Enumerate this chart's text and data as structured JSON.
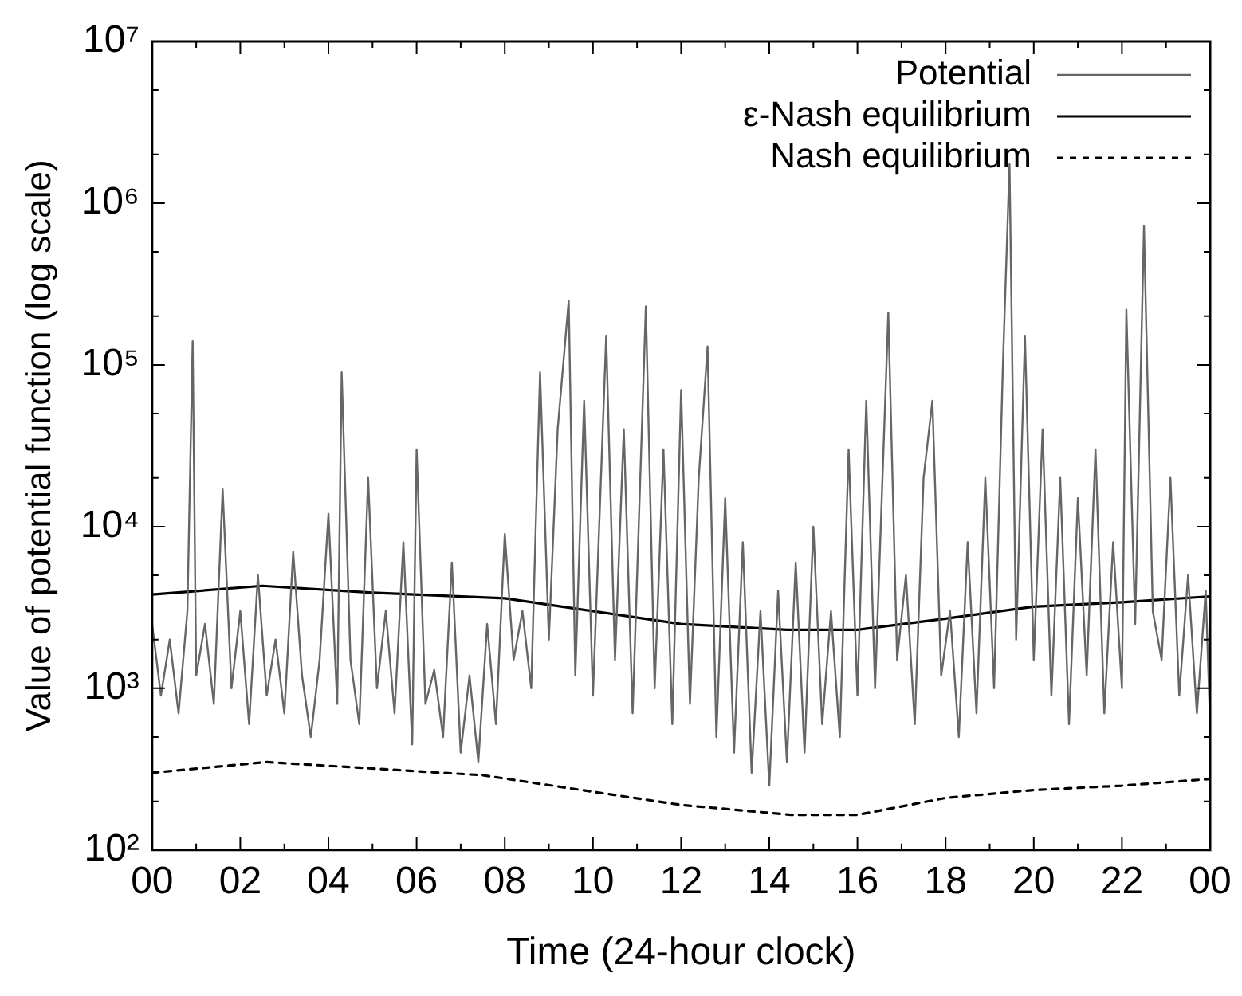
{
  "chart_data": {
    "type": "line",
    "xlabel": "Time (24-hour clock)",
    "ylabel": "Value of potential function (log scale)",
    "log": "y",
    "grid": false,
    "legend": "top right",
    "marker": "none",
    "xlim": [
      0,
      24
    ],
    "xticks": [
      {
        "value": 0,
        "label": "00"
      },
      {
        "value": 1,
        "label": null
      },
      {
        "value": 2,
        "label": "02"
      },
      {
        "value": 3,
        "label": null
      },
      {
        "value": 4,
        "label": "04"
      },
      {
        "value": 5,
        "label": null
      },
      {
        "value": 6,
        "label": "06"
      },
      {
        "value": 7,
        "label": null
      },
      {
        "value": 8,
        "label": "08"
      },
      {
        "value": 9,
        "label": null
      },
      {
        "value": 10,
        "label": "10"
      },
      {
        "value": 11,
        "label": null
      },
      {
        "value": 12,
        "label": "12"
      },
      {
        "value": 13,
        "label": null
      },
      {
        "value": 14,
        "label": "14"
      },
      {
        "value": 15,
        "label": null
      },
      {
        "value": 16,
        "label": "16"
      },
      {
        "value": 17,
        "label": null
      },
      {
        "value": 18,
        "label": "18"
      },
      {
        "value": 19,
        "label": null
      },
      {
        "value": 20,
        "label": "20"
      },
      {
        "value": 21,
        "label": null
      },
      {
        "value": 22,
        "label": "22"
      },
      {
        "value": 23,
        "label": null
      },
      {
        "value": 24,
        "label": "00"
      }
    ],
    "ylim": [
      100,
      10000000
    ],
    "yticks": [
      {
        "value": 100,
        "label": "10²"
      },
      {
        "value": 200,
        "label": null
      },
      {
        "value": 500,
        "label": null
      },
      {
        "value": 1000,
        "label": "10³"
      },
      {
        "value": 2000,
        "label": null
      },
      {
        "value": 5000,
        "label": null
      },
      {
        "value": 10000,
        "label": "10⁴"
      },
      {
        "value": 20000,
        "label": null
      },
      {
        "value": 50000,
        "label": null
      },
      {
        "value": 100000,
        "label": "10⁵"
      },
      {
        "value": 200000,
        "label": null
      },
      {
        "value": 500000,
        "label": null
      },
      {
        "value": 1000000,
        "label": "10⁶"
      },
      {
        "value": 2000000,
        "label": null
      },
      {
        "value": 5000000,
        "label": null
      },
      {
        "value": 10000000,
        "label": "10⁷"
      }
    ],
    "series": [
      {
        "name": "Potential",
        "color": "#666666",
        "line_style": "solid",
        "x": [
          0,
          0.2,
          0.4,
          0.6,
          0.8,
          0.92,
          1.0,
          1.2,
          1.4,
          1.6,
          1.8,
          2.0,
          2.2,
          2.4,
          2.6,
          2.8,
          3.0,
          3.2,
          3.4,
          3.6,
          3.8,
          4.0,
          4.2,
          4.3,
          4.5,
          4.7,
          4.9,
          5.1,
          5.3,
          5.5,
          5.7,
          5.9,
          6.0,
          6.2,
          6.4,
          6.6,
          6.8,
          7.0,
          7.2,
          7.4,
          7.6,
          7.8,
          8.0,
          8.2,
          8.4,
          8.6,
          8.8,
          9.0,
          9.2,
          9.45,
          9.6,
          9.8,
          10.0,
          10.3,
          10.5,
          10.7,
          10.9,
          11.2,
          11.4,
          11.6,
          11.8,
          12.0,
          12.2,
          12.4,
          12.6,
          12.8,
          13.0,
          13.2,
          13.4,
          13.6,
          13.8,
          14.0,
          14.2,
          14.4,
          14.6,
          14.8,
          15.0,
          15.2,
          15.4,
          15.6,
          15.8,
          16.0,
          16.2,
          16.4,
          16.7,
          16.9,
          17.1,
          17.3,
          17.5,
          17.7,
          17.9,
          18.1,
          18.3,
          18.5,
          18.7,
          18.9,
          19.1,
          19.3,
          19.45,
          19.6,
          19.8,
          20.0,
          20.2,
          20.4,
          20.6,
          20.8,
          21.0,
          21.2,
          21.4,
          21.6,
          21.8,
          22.0,
          22.1,
          22.3,
          22.5,
          22.7,
          22.9,
          23.1,
          23.3,
          23.5,
          23.7,
          23.9,
          24.0
        ],
        "values": [
          2500,
          900,
          2000,
          700,
          3000,
          140000,
          1200,
          2500,
          800,
          17000,
          1000,
          3000,
          600,
          5000,
          900,
          2000,
          700,
          7000,
          1200,
          500,
          1500,
          12000,
          800,
          90000,
          1500,
          600,
          20000,
          1000,
          3000,
          700,
          8000,
          450,
          30000,
          800,
          1300,
          500,
          6000,
          400,
          1200,
          350,
          2500,
          600,
          9000,
          1500,
          3000,
          1000,
          90000,
          2000,
          40000,
          250000,
          1200,
          60000,
          900,
          150000,
          1500,
          40000,
          700,
          230000,
          1000,
          30000,
          600,
          70000,
          800,
          20000,
          130000,
          500,
          15000,
          400,
          8000,
          300,
          3000,
          250,
          4000,
          350,
          6000,
          400,
          10000,
          600,
          3000,
          500,
          30000,
          900,
          60000,
          1000,
          210000,
          1500,
          5000,
          600,
          20000,
          60000,
          1200,
          3000,
          500,
          8000,
          700,
          20000,
          1000,
          100000,
          1740000,
          2000,
          150000,
          1500,
          40000,
          900,
          20000,
          600,
          15000,
          1200,
          30000,
          700,
          8000,
          1000,
          220000,
          2500,
          720000,
          3000,
          1500,
          20000,
          900,
          5000,
          700,
          4000,
          600
        ]
      },
      {
        "name": "ε-Nash equilibrium",
        "color": "#000000",
        "line_style": "solid",
        "x": [
          0,
          2.5,
          5,
          8,
          12,
          14.4,
          16,
          18,
          20,
          22,
          24
        ],
        "values": [
          3800,
          4300,
          3900,
          3600,
          2500,
          2300,
          2300,
          2700,
          3200,
          3400,
          3700
        ]
      },
      {
        "name": "Nash equilibrium",
        "color": "#000000",
        "line_style": "dashed",
        "x": [
          0,
          2.6,
          7.5,
          12,
          14.5,
          16,
          18,
          20,
          22,
          24
        ],
        "values": [
          300,
          350,
          290,
          190,
          165,
          165,
          210,
          235,
          250,
          275
        ]
      }
    ]
  }
}
